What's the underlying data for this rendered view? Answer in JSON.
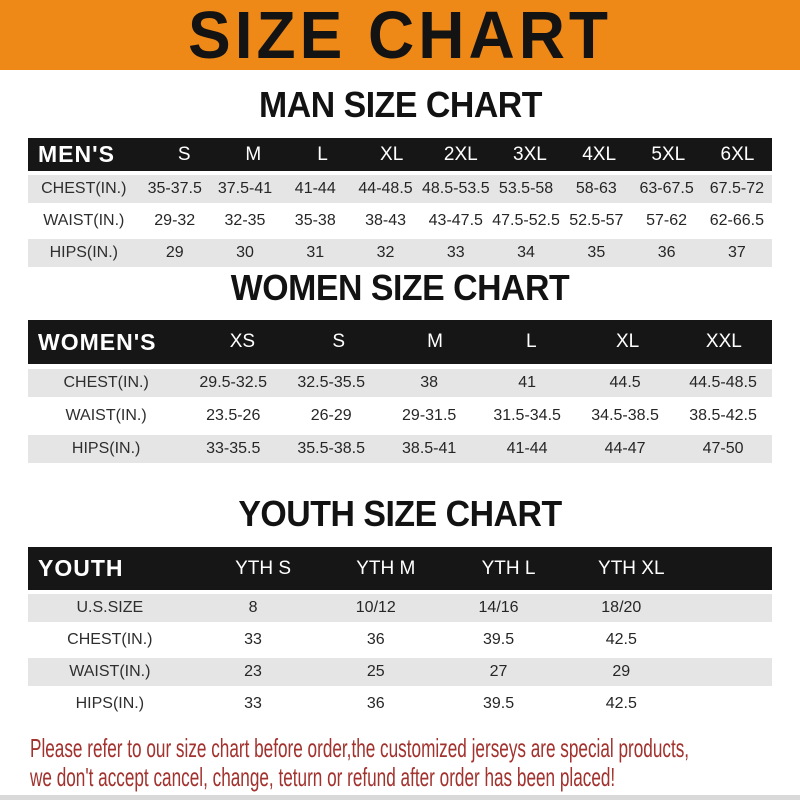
{
  "banner": {
    "title": "SIZE CHART"
  },
  "colors": {
    "banner_orange": "#EE8817",
    "header_black": "#161616",
    "row_gray": "#E5E5E5",
    "note_red": "#A2322E"
  },
  "sections": [
    {
      "heading": "MAN SIZE CHART",
      "table": {
        "label_header": "MEN'S",
        "columns": [
          "S",
          "M",
          "L",
          "XL",
          "2XL",
          "3XL",
          "4XL",
          "5XL",
          "6XL"
        ],
        "rows": [
          {
            "label": "CHEST(IN.)",
            "values": [
              "35-37.5",
              "37.5-41",
              "41-44",
              "44-48.5",
              "48.5-53.5",
              "53.5-58",
              "58-63",
              "63-67.5",
              "67.5-72"
            ]
          },
          {
            "label": "WAIST(IN.)",
            "values": [
              "29-32",
              "32-35",
              "35-38",
              "38-43",
              "43-47.5",
              "47.5-52.5",
              "52.5-57",
              "57-62",
              "62-66.5"
            ]
          },
          {
            "label": "HIPS(IN.)",
            "values": [
              "29",
              "30",
              "31",
              "32",
              "33",
              "34",
              "35",
              "36",
              "37"
            ]
          }
        ]
      }
    },
    {
      "heading": "WOMEN SIZE CHART",
      "table": {
        "label_header": "WOMEN'S",
        "columns": [
          "XS",
          "S",
          "M",
          "L",
          "XL",
          "XXL"
        ],
        "rows": [
          {
            "label": "CHEST(IN.)",
            "values": [
              "29.5-32.5",
              "32.5-35.5",
              "38",
              "41",
              "44.5",
              "44.5-48.5"
            ]
          },
          {
            "label": "WAIST(IN.)",
            "values": [
              "23.5-26",
              "26-29",
              "29-31.5",
              "31.5-34.5",
              "34.5-38.5",
              "38.5-42.5"
            ]
          },
          {
            "label": "HIPS(IN.)",
            "values": [
              "33-35.5",
              "35.5-38.5",
              "38.5-41",
              "41-44",
              "44-47",
              "47-50"
            ]
          }
        ]
      }
    },
    {
      "heading": "YOUTH SIZE CHART",
      "table": {
        "label_header": "YOUTH",
        "columns": [
          "YTH S",
          "YTH M",
          "YTH L",
          "YTH XL"
        ],
        "rows": [
          {
            "label": "U.S.SIZE",
            "values": [
              "8",
              "10/12",
              "14/16",
              "18/20"
            ]
          },
          {
            "label": "CHEST(IN.)",
            "values": [
              "33",
              "36",
              "39.5",
              "42.5"
            ]
          },
          {
            "label": "WAIST(IN.)",
            "values": [
              "23",
              "25",
              "27",
              "29"
            ]
          },
          {
            "label": "HIPS(IN.)",
            "values": [
              "33",
              "36",
              "39.5",
              "42.5"
            ]
          }
        ]
      }
    }
  ],
  "note": {
    "line1": "Please refer to our size chart before order,the customized jerseys are special products,",
    "line2": "we don't accept cancel, change, teturn or refund after order has been placed!"
  }
}
